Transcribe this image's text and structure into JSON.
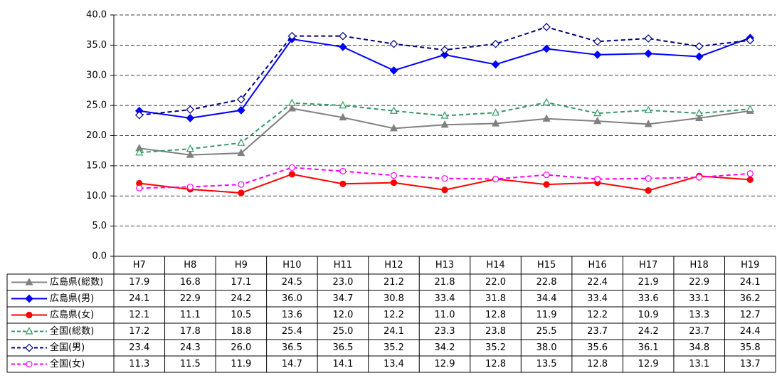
{
  "chart_data": {
    "type": "line",
    "categories": [
      "H7",
      "H8",
      "H9",
      "H10",
      "H11",
      "H12",
      "H13",
      "H14",
      "H15",
      "H16",
      "H17",
      "H18",
      "H19"
    ],
    "ylim": [
      0,
      40
    ],
    "yticks": [
      {
        "value": 0,
        "label": "0.0"
      },
      {
        "value": 5,
        "label": "5.0"
      },
      {
        "value": 10,
        "label": "10.0"
      },
      {
        "value": 15,
        "label": "15.0"
      },
      {
        "value": 20,
        "label": "20.0"
      },
      {
        "value": 25,
        "label": "25.0"
      },
      {
        "value": 30,
        "label": "30.0"
      },
      {
        "value": 35,
        "label": "35.0"
      },
      {
        "value": 40,
        "label": "40.0"
      }
    ],
    "grid": true,
    "series": [
      {
        "name": "広島県(総数)",
        "color": "#808080",
        "marker": "triangle",
        "dashed": false,
        "values": [
          17.9,
          16.8,
          17.1,
          24.5,
          23.0,
          21.2,
          21.8,
          22.0,
          22.8,
          22.4,
          21.9,
          22.9,
          24.1
        ],
        "value_labels": [
          "17.9",
          "16.8",
          "17.1",
          "24.5",
          "23.0",
          "21.2",
          "21.8",
          "22.0",
          "22.8",
          "22.4",
          "21.9",
          "22.9",
          "24.1"
        ]
      },
      {
        "name": "広島県(男)",
        "color": "#0000ff",
        "marker": "diamond",
        "dashed": false,
        "values": [
          24.1,
          22.9,
          24.2,
          36.0,
          34.7,
          30.8,
          33.4,
          31.8,
          34.4,
          33.4,
          33.6,
          33.1,
          36.2
        ],
        "value_labels": [
          "24.1",
          "22.9",
          "24.2",
          "36.0",
          "34.7",
          "30.8",
          "33.4",
          "31.8",
          "34.4",
          "33.4",
          "33.6",
          "33.1",
          "36.2"
        ]
      },
      {
        "name": "広島県(女)",
        "color": "#ff0000",
        "marker": "circle",
        "dashed": false,
        "values": [
          12.1,
          11.1,
          10.5,
          13.6,
          12.0,
          12.2,
          11.0,
          12.8,
          11.9,
          12.2,
          10.9,
          13.3,
          12.7
        ],
        "value_labels": [
          "12.1",
          "11.1",
          "10.5",
          "13.6",
          "12.0",
          "12.2",
          "11.0",
          "12.8",
          "11.9",
          "12.2",
          "10.9",
          "13.3",
          "12.7"
        ]
      },
      {
        "name": "全国(総数)",
        "color": "#339966",
        "marker": "triangle",
        "dashed": true,
        "values": [
          17.2,
          17.8,
          18.8,
          25.4,
          25.0,
          24.1,
          23.3,
          23.8,
          25.5,
          23.7,
          24.2,
          23.7,
          24.4
        ],
        "value_labels": [
          "17.2",
          "17.8",
          "18.8",
          "25.4",
          "25.0",
          "24.1",
          "23.3",
          "23.8",
          "25.5",
          "23.7",
          "24.2",
          "23.7",
          "24.4"
        ]
      },
      {
        "name": "全国(男)",
        "color": "#000080",
        "marker": "diamond",
        "dashed": true,
        "values": [
          23.4,
          24.3,
          26.0,
          36.5,
          36.5,
          35.2,
          34.2,
          35.2,
          38.0,
          35.6,
          36.1,
          34.8,
          35.8
        ],
        "value_labels": [
          "23.4",
          "24.3",
          "26.0",
          "36.5",
          "36.5",
          "35.2",
          "34.2",
          "35.2",
          "38.0",
          "35.6",
          "36.1",
          "34.8",
          "35.8"
        ]
      },
      {
        "name": "全国(女)",
        "color": "#ff00ff",
        "marker": "circle",
        "dashed": true,
        "values": [
          11.3,
          11.5,
          11.9,
          14.7,
          14.1,
          13.4,
          12.9,
          12.8,
          13.5,
          12.8,
          12.9,
          13.1,
          13.7
        ],
        "value_labels": [
          "11.3",
          "11.5",
          "11.9",
          "14.7",
          "14.1",
          "13.4",
          "12.9",
          "12.8",
          "13.5",
          "12.8",
          "12.9",
          "13.1",
          "13.7"
        ]
      }
    ]
  }
}
